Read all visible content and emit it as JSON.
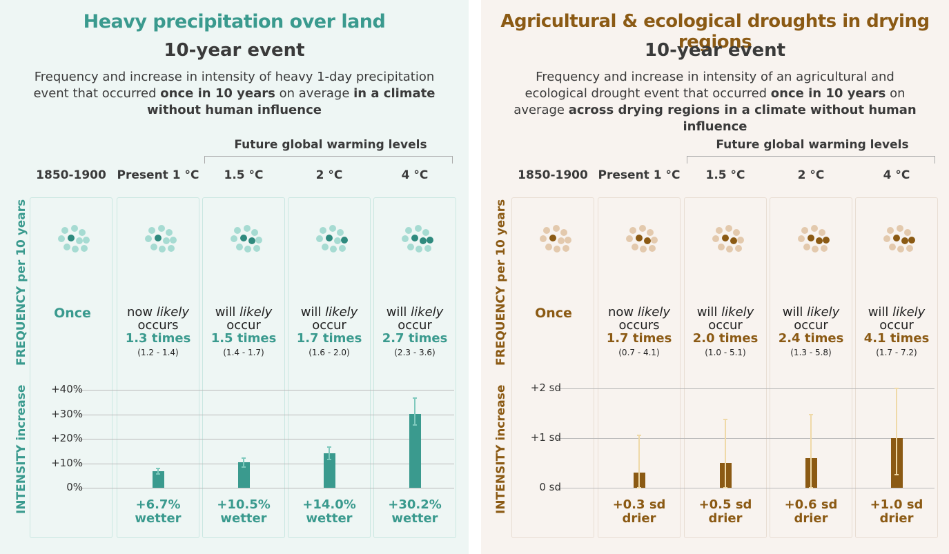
{
  "colors": {
    "teal": "#3a9a8e",
    "teal_light": "#a6dbd2",
    "teal_dark": "#2f8a7e",
    "brown": "#8b5a14",
    "brown_light": "#e3c9ad",
    "brown_err": "#efd9a8"
  },
  "left": {
    "title": "Heavy precipitation over land",
    "event": "10-year event",
    "desc_1": "Frequency and increase in intensity of heavy 1-day precipitation event that occurred ",
    "desc_2": "once in 10 years",
    "desc_3": " on average ",
    "desc_4": "in a climate without human influence",
    "future_label": "Future global warming levels",
    "columns": [
      "1850-1900",
      "Present 1 °C",
      "1.5 °C",
      "2 °C",
      "4 °C"
    ],
    "freq_axis_label": "FREQUENCY per 10 years",
    "int_axis_label": "INTENSITY increase",
    "once": "Once",
    "freq": [
      {
        "l1a": "now ",
        "l1b": "likely",
        "l2": "occurs",
        "times": "1.3 times",
        "range": "(1.2 - 1.4)"
      },
      {
        "l1a": "will ",
        "l1b": "likely",
        "l2": "occur",
        "times": "1.5 times",
        "range": "(1.4 - 1.7)"
      },
      {
        "l1a": "will ",
        "l1b": "likely",
        "l2": "occur",
        "times": "1.7 times",
        "range": "(1.6 - 2.0)"
      },
      {
        "l1a": "will ",
        "l1b": "likely",
        "l2": "occur",
        "times": "2.7 times",
        "range": "(2.3 - 3.6)"
      }
    ],
    "yticks": [
      "+40%",
      "+30%",
      "+20%",
      "+10%",
      "0%"
    ],
    "intensity": [
      {
        "value": "+6.7%",
        "word": "wetter"
      },
      {
        "value": "+10.5%",
        "word": "wetter"
      },
      {
        "value": "+14.0%",
        "word": "wetter"
      },
      {
        "value": "+30.2%",
        "word": "wetter"
      }
    ]
  },
  "right": {
    "title": "Agricultural & ecological droughts in drying regions",
    "event": "10-year event",
    "desc_1": "Frequency and increase in intensity of an agricultural and ecological drought event that occurred ",
    "desc_2": "once in 10 years",
    "desc_3": " on average ",
    "desc_4": "across drying regions in a climate without human influence",
    "future_label": "Future global warming levels",
    "columns": [
      "1850-1900",
      "Present 1 °C",
      "1.5 °C",
      "2 °C",
      "4 °C"
    ],
    "freq_axis_label": "FREQUENCY per 10 years",
    "int_axis_label": "INTENSITY increase",
    "once": "Once",
    "freq": [
      {
        "l1a": "now ",
        "l1b": "likely",
        "l2": "occurs",
        "times": "1.7 times",
        "range": "(0.7 - 4.1)"
      },
      {
        "l1a": "will ",
        "l1b": "likely",
        "l2": "occur",
        "times": "2.0 times",
        "range": "(1.0 - 5.1)"
      },
      {
        "l1a": "will ",
        "l1b": "likely",
        "l2": "occur",
        "times": "2.4 times",
        "range": "(1.3 - 5.8)"
      },
      {
        "l1a": "will ",
        "l1b": "likely",
        "l2": "occur",
        "times": "4.1 times",
        "range": "(1.7 - 7.2)"
      }
    ],
    "yticks": [
      "+2 sd",
      "+1 sd",
      "0 sd"
    ],
    "intensity": [
      {
        "value": "+0.3 sd",
        "word": "drier"
      },
      {
        "value": "+0.5 sd",
        "word": "drier"
      },
      {
        "value": "+0.6 sd",
        "word": "drier"
      },
      {
        "value": "+1.0 sd",
        "word": "drier"
      }
    ]
  },
  "chart_data": [
    {
      "type": "bar",
      "categories": [
        "Present 1 °C",
        "1.5 °C",
        "2 °C",
        "4 °C"
      ],
      "values": [
        6.7,
        10.5,
        14.0,
        30.2
      ],
      "error_low": [
        5.5,
        8.5,
        11.5,
        25.5
      ],
      "error_high": [
        7.8,
        12.0,
        16.5,
        36.5
      ],
      "ylabel": "INTENSITY increase",
      "ylim": [
        0,
        40
      ],
      "frequency_values": [
        1.0,
        1.3,
        1.5,
        1.7,
        2.7
      ],
      "frequency_ranges": [
        [
          1.2,
          1.4
        ],
        [
          1.4,
          1.7
        ],
        [
          1.6,
          2.0
        ],
        [
          2.3,
          3.6
        ]
      ],
      "grid": true
    },
    {
      "type": "bar",
      "categories": [
        "Present 1 °C",
        "1.5 °C",
        "2 °C",
        "4 °C"
      ],
      "values": [
        0.3,
        0.5,
        0.6,
        1.0
      ],
      "error_low": [
        0.0,
        0.0,
        0.0,
        0.27
      ],
      "error_high": [
        1.05,
        1.37,
        1.47,
        2.0
      ],
      "ylabel": "INTENSITY increase",
      "ylim": [
        0,
        2
      ],
      "frequency_values": [
        1.0,
        1.7,
        2.0,
        2.4,
        4.1
      ],
      "frequency_ranges": [
        [
          0.7,
          4.1
        ],
        [
          1.0,
          5.1
        ],
        [
          1.3,
          5.8
        ],
        [
          1.7,
          7.2
        ]
      ],
      "grid": true
    }
  ]
}
